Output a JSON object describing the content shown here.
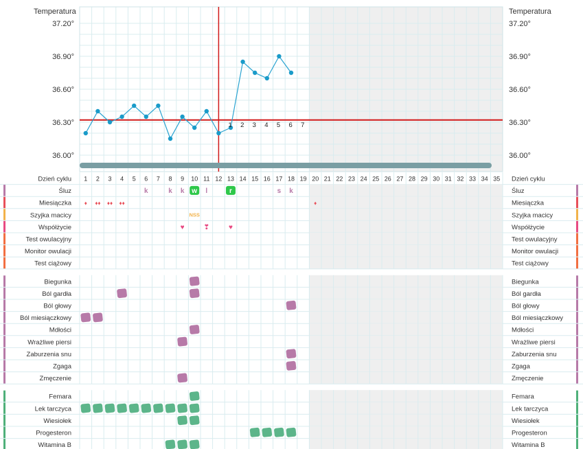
{
  "header": {
    "temp_title_left": "Temperatura",
    "temp_title_right": "Temperatura"
  },
  "colors": {
    "temp_line": "#29a3d1",
    "temp_point": "#1a9bc9",
    "coverline": "#d11a1a",
    "cycle_marker": "#d11a1a",
    "grid": "#d9ecef",
    "future_shade": "#efefef",
    "scrollbar": "#7a9ea3",
    "symptom_purple": "#b77aa8",
    "mucus_green": "#2ec84a",
    "med_green": "#5cb58a",
    "period_red": "#e8505a",
    "cervix_orange": "#f2b24a",
    "sex_pink": "#e84a82"
  },
  "chart_data": {
    "type": "line",
    "y_ticks": [
      "37.20°",
      "36.90°",
      "36.60°",
      "36.30°",
      "36.00°"
    ],
    "y_range": [
      36.0,
      37.2
    ],
    "coverline": 36.32,
    "day_marker": 12,
    "days_total": 35,
    "future_from_day": 20,
    "x": [
      1,
      2,
      3,
      4,
      5,
      6,
      7,
      8,
      9,
      10,
      11,
      12,
      13,
      14,
      15,
      16,
      17,
      18
    ],
    "temperatures": [
      36.2,
      36.4,
      36.3,
      36.35,
      36.45,
      36.35,
      36.45,
      36.15,
      36.35,
      36.25,
      36.4,
      36.2,
      36.25,
      36.85,
      36.75,
      36.7,
      36.9,
      36.75
    ],
    "post_ovulation_labels": [
      {
        "day": 12,
        "label": "1"
      },
      {
        "day": 13,
        "label": "2"
      },
      {
        "day": 14,
        "label": "3"
      },
      {
        "day": 15,
        "label": "4"
      },
      {
        "day": 16,
        "label": "5"
      },
      {
        "day": 17,
        "label": "6"
      },
      {
        "day": 18,
        "label": "7"
      }
    ]
  },
  "table": {
    "day_row_label": "Dzień cyklu",
    "days": [
      "1",
      "2",
      "3",
      "4",
      "5",
      "6",
      "7",
      "8",
      "9",
      "10",
      "11",
      "12",
      "13",
      "14",
      "15",
      "16",
      "17",
      "18",
      "19",
      "20",
      "21",
      "22",
      "23",
      "24",
      "25",
      "26",
      "27",
      "28",
      "29",
      "30",
      "31",
      "32",
      "33",
      "34",
      "35"
    ],
    "groups": [
      {
        "rows": [
          {
            "label": "Śluz",
            "color": "#b77aa8",
            "marks": [
              {
                "day": 6,
                "type": "text",
                "text": "k"
              },
              {
                "day": 8,
                "type": "text",
                "text": "k"
              },
              {
                "day": 9,
                "type": "text",
                "text": "k"
              },
              {
                "day": 10,
                "type": "green-text",
                "text": "w"
              },
              {
                "day": 11,
                "type": "text",
                "text": "l"
              },
              {
                "day": 13,
                "type": "green-text",
                "text": "r"
              },
              {
                "day": 17,
                "type": "text",
                "text": "s"
              },
              {
                "day": 18,
                "type": "text",
                "text": "k"
              }
            ]
          },
          {
            "label": "Miesiączka",
            "color": "#e8505a",
            "marks": [
              {
                "day": 1,
                "type": "drops",
                "text": "♦"
              },
              {
                "day": 2,
                "type": "drops",
                "text": "♦♦"
              },
              {
                "day": 3,
                "type": "drops",
                "text": "♦♦"
              },
              {
                "day": 4,
                "type": "drops",
                "text": "♦♦"
              },
              {
                "day": 20,
                "type": "drops",
                "text": "♦"
              }
            ]
          },
          {
            "label": "Szyjka macicy",
            "color": "#f2b24a",
            "marks": [
              {
                "day": 10,
                "type": "orange-text",
                "text": "NSS"
              }
            ]
          },
          {
            "label": "Współżycie",
            "color": "#e84a82",
            "marks": [
              {
                "day": 9,
                "type": "heart",
                "text": "♥"
              },
              {
                "day": 11,
                "type": "heart",
                "text": "❣"
              },
              {
                "day": 13,
                "type": "heart",
                "text": "♥"
              }
            ]
          },
          {
            "label": "Test owulacyjny",
            "color": "#f26f42",
            "marks": []
          },
          {
            "label": "Monitor owulacji",
            "color": "#f26f42",
            "marks": []
          },
          {
            "label": "Test ciążowy",
            "color": "#f26f42",
            "marks": []
          }
        ]
      },
      {
        "rows": [
          {
            "label": "Biegunka",
            "color": "#b77aa8",
            "blob": "#b77aa8",
            "days": [
              10
            ]
          },
          {
            "label": "Ból gardła",
            "color": "#b77aa8",
            "blob": "#b77aa8",
            "days": [
              4,
              10
            ]
          },
          {
            "label": "Ból głowy",
            "color": "#b77aa8",
            "blob": "#b77aa8",
            "days": [
              18
            ]
          },
          {
            "label": "Ból miesiączkowy",
            "color": "#b77aa8",
            "blob": "#b77aa8",
            "days": [
              1,
              2
            ]
          },
          {
            "label": "Mdłości",
            "color": "#b77aa8",
            "blob": "#b77aa8",
            "days": [
              10
            ]
          },
          {
            "label": "Wrażliwe piersi",
            "color": "#b77aa8",
            "blob": "#b77aa8",
            "days": [
              9
            ]
          },
          {
            "label": "Zaburzenia snu",
            "color": "#b77aa8",
            "blob": "#b77aa8",
            "days": [
              18
            ]
          },
          {
            "label": "Zgaga",
            "color": "#b77aa8",
            "blob": "#b77aa8",
            "days": [
              18
            ]
          },
          {
            "label": "Zmęczenie",
            "color": "#b77aa8",
            "blob": "#b77aa8",
            "days": [
              9
            ]
          }
        ]
      },
      {
        "rows": [
          {
            "label": "Femara",
            "color": "#4fb07a",
            "blob": "#5cb58a",
            "days": [
              10
            ]
          },
          {
            "label": "Lek tarczyca",
            "color": "#4fb07a",
            "blob": "#5cb58a",
            "days": [
              1,
              2,
              3,
              4,
              5,
              6,
              7,
              8,
              9,
              10
            ]
          },
          {
            "label": "Wiesiołek",
            "color": "#4fb07a",
            "blob": "#5cb58a",
            "days": [
              9,
              10
            ]
          },
          {
            "label": "Progesteron",
            "color": "#4fb07a",
            "blob": "#5cb58a",
            "days": [
              15,
              16,
              17,
              18
            ]
          },
          {
            "label": "Witamina B",
            "color": "#4fb07a",
            "blob": "#5cb58a",
            "days": [
              8,
              9,
              10
            ]
          }
        ]
      }
    ]
  }
}
